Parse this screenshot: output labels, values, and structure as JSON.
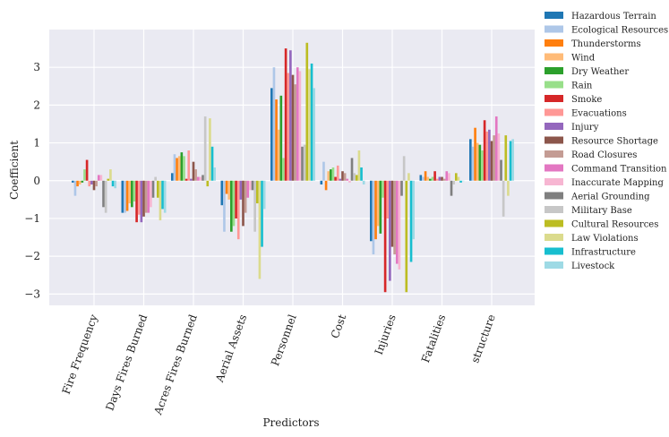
{
  "chart_data": {
    "type": "bar",
    "title": "",
    "xlabel": "Predictors",
    "ylabel": "Coefficient",
    "ylim": [
      -3.3,
      4.0
    ],
    "yticks": [
      -3,
      -2,
      -1,
      0,
      1,
      2,
      3
    ],
    "grid": true,
    "legend_position": "outside-top-right",
    "categories": [
      "Fire Frequency",
      "Days Fires Burned",
      "Acres Fires Burned",
      "Aerial Assets",
      "Personnel",
      "Cost",
      "Injuries",
      "Fatalities",
      "structure"
    ],
    "series": [
      {
        "name": "Hazardous Terrain",
        "color": "#1f77b4",
        "values": [
          -0.05,
          -0.85,
          0.2,
          -0.65,
          2.45,
          -0.1,
          -1.6,
          0.15,
          1.1
        ]
      },
      {
        "name": "Ecological Resources",
        "color": "#aec7e8",
        "values": [
          -0.4,
          -0.85,
          0.7,
          -1.35,
          3.0,
          0.5,
          -1.95,
          0.1,
          0.9
        ]
      },
      {
        "name": "Thunderstorms",
        "color": "#ff7f0e",
        "values": [
          -0.15,
          -0.8,
          0.6,
          -0.35,
          2.15,
          -0.25,
          -1.55,
          0.25,
          1.4
        ]
      },
      {
        "name": "Wind",
        "color": "#ffbb78",
        "values": [
          -0.1,
          -0.6,
          0.65,
          -0.5,
          1.35,
          0.25,
          -1.2,
          0.1,
          1.0
        ]
      },
      {
        "name": "Dry Weather",
        "color": "#2ca02c",
        "values": [
          -0.05,
          -0.7,
          0.75,
          -1.35,
          2.25,
          0.3,
          -1.4,
          0.05,
          0.95
        ]
      },
      {
        "name": "Rain",
        "color": "#98df8a",
        "values": [
          0.3,
          -0.55,
          0.65,
          -1.2,
          0.6,
          0.35,
          -0.45,
          0.1,
          0.8
        ]
      },
      {
        "name": "Smoke",
        "color": "#d62728",
        "values": [
          0.55,
          -1.1,
          0.05,
          -1.0,
          3.5,
          0.1,
          -2.95,
          0.25,
          1.6
        ]
      },
      {
        "name": "Evacuations",
        "color": "#ff9896",
        "values": [
          -0.15,
          -0.9,
          0.8,
          -1.55,
          2.85,
          0.4,
          -1.0,
          0.05,
          1.3
        ]
      },
      {
        "name": "Injury",
        "color": "#9467bd",
        "values": [
          -0.1,
          -1.1,
          0.05,
          -0.5,
          3.45,
          0.05,
          -2.65,
          0.1,
          1.35
        ]
      },
      {
        "name": "Resource Shortage",
        "color": "#8c564b",
        "values": [
          -0.25,
          -0.95,
          0.5,
          -1.2,
          2.8,
          0.25,
          -1.75,
          0.1,
          1.05
        ]
      },
      {
        "name": "Road Closures",
        "color": "#c49c94",
        "values": [
          -0.15,
          -0.85,
          0.3,
          -0.85,
          2.55,
          0.2,
          -1.95,
          0.05,
          1.2
        ]
      },
      {
        "name": "Command Transition",
        "color": "#e377c2",
        "values": [
          0.15,
          -0.85,
          0.1,
          -0.45,
          3.0,
          0.05,
          -2.2,
          0.25,
          1.7
        ]
      },
      {
        "name": "Inaccurate Mapping",
        "color": "#f7b6d2",
        "values": [
          0.15,
          -0.7,
          0.1,
          -0.25,
          2.9,
          -0.05,
          -2.35,
          0.2,
          1.25
        ]
      },
      {
        "name": "Aerial Grounding",
        "color": "#7f7f7f",
        "values": [
          -0.7,
          -0.45,
          0.15,
          -0.25,
          0.9,
          0.6,
          -0.4,
          -0.4,
          0.55
        ]
      },
      {
        "name": "Military Base",
        "color": "#c7c7c7",
        "values": [
          -0.85,
          0.1,
          1.7,
          -1.35,
          0.95,
          0.2,
          0.65,
          -0.1,
          -0.95
        ]
      },
      {
        "name": "Cultural Resources",
        "color": "#bcbd22",
        "values": [
          0.05,
          -0.45,
          -0.15,
          -0.6,
          3.65,
          0.15,
          -2.95,
          0.2,
          1.2
        ]
      },
      {
        "name": "Law Violations",
        "color": "#dbdb8d",
        "values": [
          0.3,
          -1.05,
          1.65,
          -2.6,
          2.95,
          0.8,
          0.2,
          0.1,
          -0.4
        ]
      },
      {
        "name": "Infrastructure",
        "color": "#17becf",
        "values": [
          -0.15,
          -0.75,
          0.9,
          -1.75,
          3.1,
          0.35,
          -2.15,
          -0.05,
          1.05
        ]
      },
      {
        "name": "Livestock",
        "color": "#9edae5",
        "values": [
          -0.2,
          -0.85,
          0.35,
          -0.75,
          2.45,
          -0.1,
          -1.55,
          0.0,
          1.1
        ]
      }
    ]
  }
}
